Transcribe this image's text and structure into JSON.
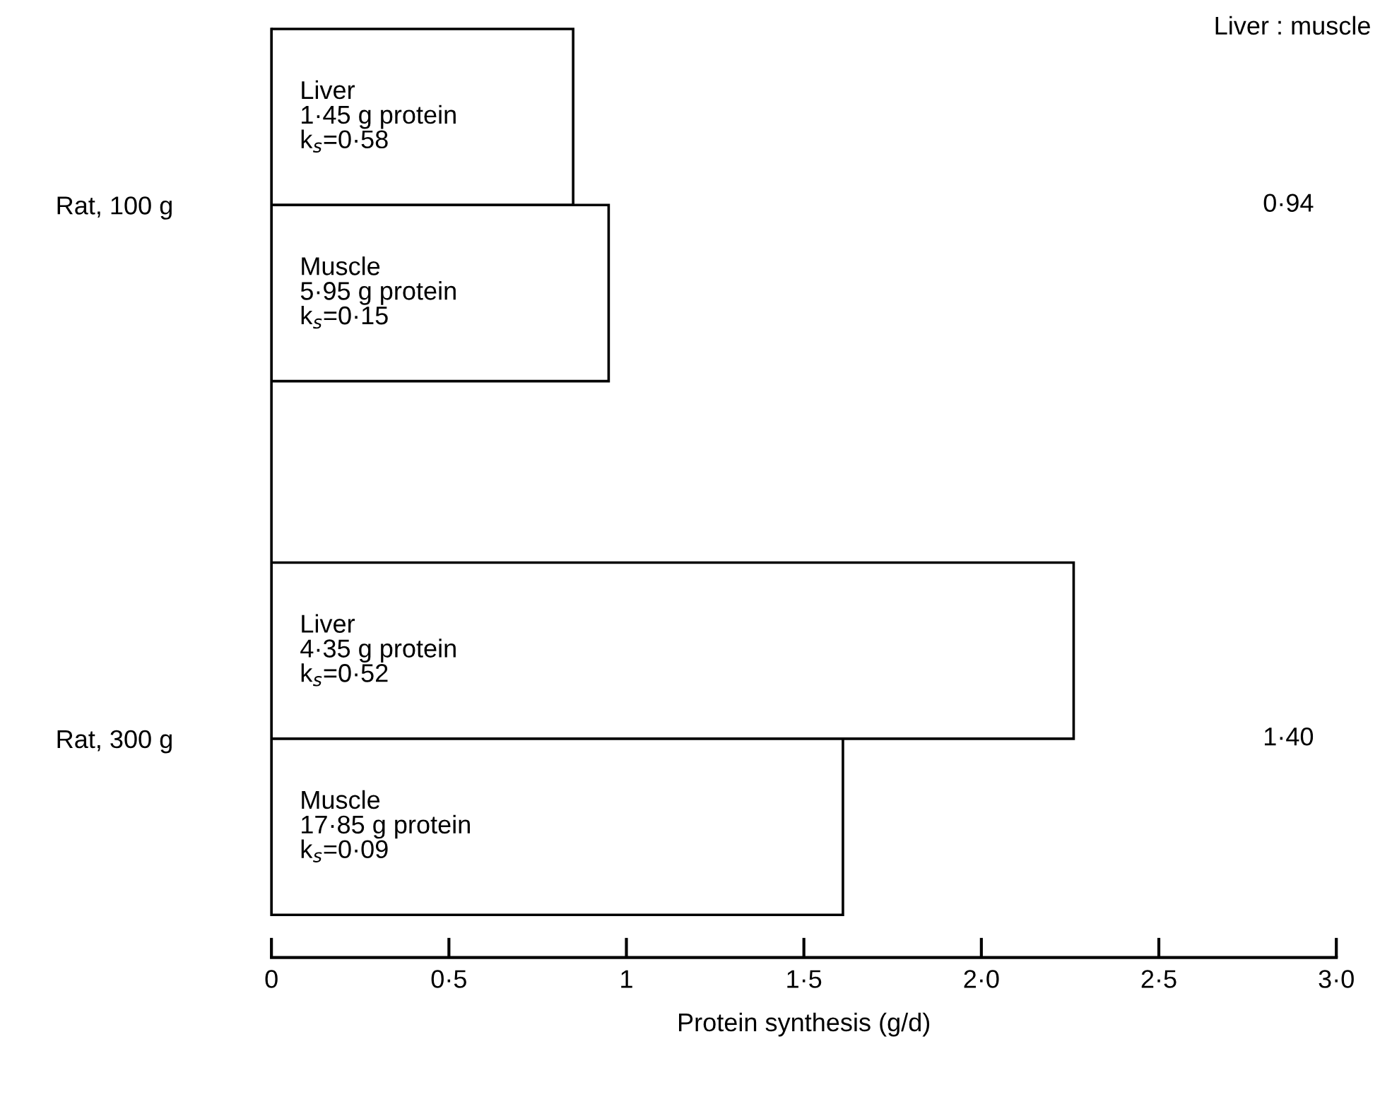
{
  "chart_data": {
    "type": "bar",
    "orientation": "horizontal",
    "xlabel": "Protein synthesis (g/d)",
    "categories": [
      "Rat, 100 g",
      "Rat, 300 g"
    ],
    "series": [
      {
        "name": "Liver",
        "color": "#ffffff",
        "values": [
          0.85,
          2.26
        ]
      },
      {
        "name": "Muscle",
        "color": "#ffffff",
        "values": [
          0.95,
          1.61
        ]
      }
    ],
    "xlim": [
      0,
      3
    ],
    "xticks": [
      0,
      {
        "value": 0.5,
        "label": "0·5"
      },
      1,
      {
        "value": 1.5,
        "label": "1·5"
      },
      {
        "value": 2,
        "label": "2·0"
      },
      {
        "value": 2.5,
        "label": "2·5"
      },
      {
        "value": 3,
        "label": "3·0"
      }
    ],
    "annotations": [
      "Liver : muscle",
      "1·45 g protein\nk$_{s}$=0·58",
      "5·95 g protein\nk$_{s}$=0·15",
      "4·35 g protein\nk$_{s}$=0·52",
      "17·85 g protein\nk$_{s}$=0·09",
      "0·94",
      "1·40"
    ],
    "grid": false,
    "legend": false
  }
}
